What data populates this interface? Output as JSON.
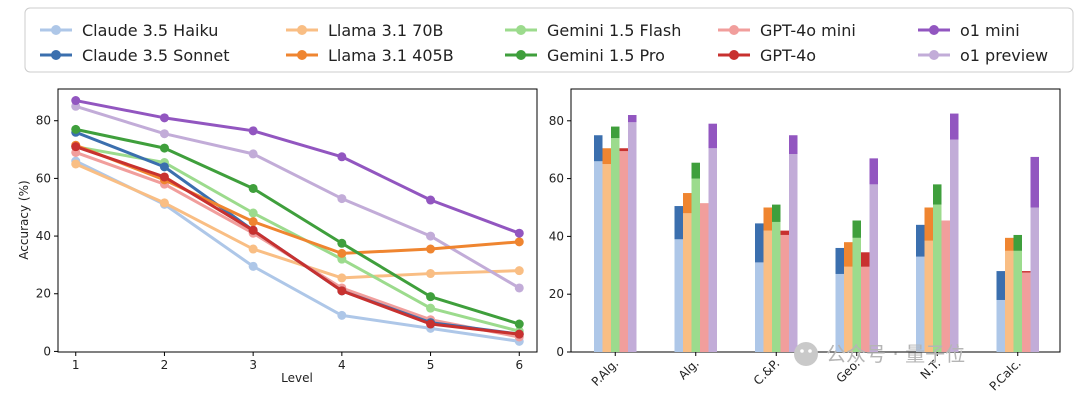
{
  "colors": {
    "Claude 3.5 Haiku": {
      "light": "#aec7e8",
      "dark": "#aec7e8"
    },
    "Claude 3.5 Sonnet": {
      "light": "#aec7e8",
      "dark": "#3b6fae"
    },
    "Llama 3.1 70B": {
      "light": "#f9be84",
      "dark": "#f9be84"
    },
    "Llama 3.1 405B": {
      "light": "#f9be84",
      "dark": "#ef8530"
    },
    "Gemini 1.5 Flash": {
      "light": "#9cdb8d",
      "dark": "#9cdb8d"
    },
    "Gemini 1.5 Pro": {
      "light": "#9cdb8d",
      "dark": "#3f9f3c"
    },
    "GPT-4o mini": {
      "light": "#f19e9c",
      "dark": "#f19e9c"
    },
    "GPT-4o": {
      "light": "#f19e9c",
      "dark": "#c8312f"
    },
    "o1 mini": {
      "light": "#c2acd8",
      "dark": "#9256c0"
    },
    "o1 preview": {
      "light": "#c2acd8",
      "dark": "#c2acd8"
    }
  },
  "legend": {
    "entries": [
      "Claude 3.5 Haiku",
      "Claude 3.5 Sonnet",
      "Llama 3.1 70B",
      "Llama 3.1 405B",
      "Gemini 1.5 Flash",
      "Gemini 1.5 Pro",
      "GPT-4o mini",
      "GPT-4o",
      "o1 mini",
      "o1 preview"
    ]
  },
  "watermark": "公众号 · 量子位",
  "chart_data": [
    {
      "type": "line",
      "title": "",
      "xlabel": "Level",
      "ylabel": "Accuracy (%)",
      "x": [
        1,
        2,
        3,
        4,
        5,
        6
      ],
      "xticks": [
        "1",
        "2",
        "3",
        "4",
        "5",
        "6"
      ],
      "ylim": [
        0,
        90
      ],
      "yticks": [
        0,
        20,
        40,
        60,
        80
      ],
      "grid": false,
      "series": [
        {
          "name": "Claude 3.5 Haiku",
          "values": [
            66,
            51,
            29.5,
            12.5,
            8,
            3.5
          ]
        },
        {
          "name": "Llama 3.1 70B",
          "values": [
            65,
            51.5,
            35.5,
            25.5,
            27,
            28
          ]
        },
        {
          "name": "Gemini 1.5 Flash",
          "values": [
            71,
            65.5,
            48,
            32,
            15,
            7
          ]
        },
        {
          "name": "GPT-4o mini",
          "values": [
            69,
            58,
            41,
            22,
            11,
            5
          ]
        },
        {
          "name": "o1 preview",
          "values": [
            85,
            75.5,
            68.5,
            53,
            40,
            22
          ]
        },
        {
          "name": "Claude 3.5 Sonnet",
          "values": [
            76,
            64,
            42,
            21,
            10,
            6
          ]
        },
        {
          "name": "Llama 3.1 405B",
          "values": [
            71.5,
            59.5,
            45,
            34,
            35.5,
            38
          ]
        },
        {
          "name": "Gemini 1.5 Pro",
          "values": [
            77,
            70.5,
            56.5,
            37.5,
            19,
            9.5
          ]
        },
        {
          "name": "GPT-4o",
          "values": [
            71,
            60.5,
            42,
            21,
            9.5,
            6
          ]
        },
        {
          "name": "o1 mini",
          "values": [
            87,
            81,
            76.5,
            67.5,
            52.5,
            41
          ]
        }
      ]
    },
    {
      "type": "bar",
      "title": "",
      "xlabel": "",
      "ylabel": "",
      "categories": [
        "P.Alg.",
        "Alg.",
        "C.&P.",
        "Geo.",
        "N.T.",
        "P.Calc."
      ],
      "ylim": [
        0,
        91
      ],
      "yticks": [
        0,
        20,
        40,
        60,
        80
      ],
      "grid": false,
      "note": "Paired bars stacked: lower (light) segment = first model, upper (dark) segment = stronger model accuracy",
      "series": [
        {
          "name": "Claude 3.5 Haiku",
          "values": [
            66,
            39,
            31,
            27,
            33,
            18
          ]
        },
        {
          "name": "Claude 3.5 Sonnet",
          "values": [
            75,
            50.5,
            44.5,
            36,
            44,
            28
          ]
        },
        {
          "name": "Llama 3.1 70B",
          "values": [
            65,
            48,
            42,
            29.5,
            38.5,
            35
          ]
        },
        {
          "name": "Llama 3.1 405B",
          "values": [
            70.5,
            55,
            50,
            38,
            50,
            39.5
          ]
        },
        {
          "name": "Gemini 1.5 Flash",
          "values": [
            74,
            60,
            45,
            39.5,
            51,
            35
          ]
        },
        {
          "name": "Gemini 1.5 Pro",
          "values": [
            78,
            65.5,
            51,
            45.5,
            58,
            40.5
          ]
        },
        {
          "name": "GPT-4o mini",
          "values": [
            69.5,
            51.5,
            40.5,
            29.5,
            45.5,
            28
          ]
        },
        {
          "name": "GPT-4o",
          "values": [
            70.5,
            51.5,
            42,
            34.5,
            45.5,
            27.5
          ]
        },
        {
          "name": "o1 preview",
          "values": [
            79.5,
            70.5,
            68.5,
            58,
            73.5,
            50
          ]
        },
        {
          "name": "o1 mini",
          "values": [
            82,
            79,
            75,
            67,
            82.5,
            67.5
          ]
        }
      ],
      "pairs": [
        [
          "Claude 3.5 Haiku",
          "Claude 3.5 Sonnet"
        ],
        [
          "Llama 3.1 70B",
          "Llama 3.1 405B"
        ],
        [
          "Gemini 1.5 Flash",
          "Gemini 1.5 Pro"
        ],
        [
          "GPT-4o mini",
          "GPT-4o"
        ],
        [
          "o1 preview",
          "o1 mini"
        ]
      ]
    }
  ]
}
